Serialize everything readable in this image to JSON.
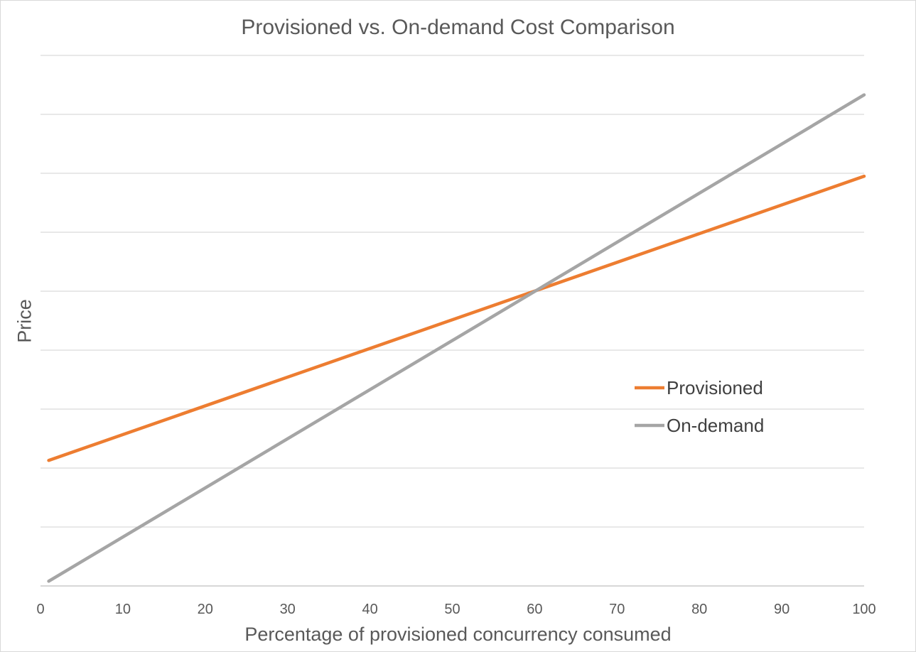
{
  "chart_data": {
    "type": "line",
    "title": "Provisioned vs. On-demand Cost Comparison",
    "xlabel": "Percentage of provisioned concurrency consumed",
    "ylabel": "Price",
    "xlim": [
      0,
      100
    ],
    "ylim": [
      0,
      9
    ],
    "x_ticks": [
      "0",
      "10",
      "20",
      "30",
      "40",
      "50",
      "60",
      "70",
      "80",
      "90",
      "100"
    ],
    "y_ticks_visible": false,
    "grid": "horizontal",
    "legend": "center-right",
    "series": [
      {
        "name": "Provisioned",
        "color": "#ed7d31",
        "x": [
          1,
          100
        ],
        "y": [
          2.13,
          6.95
        ]
      },
      {
        "name": "On-demand",
        "color": "#a5a5a5",
        "x": [
          1,
          100
        ],
        "y": [
          0.08,
          8.33
        ]
      }
    ]
  }
}
